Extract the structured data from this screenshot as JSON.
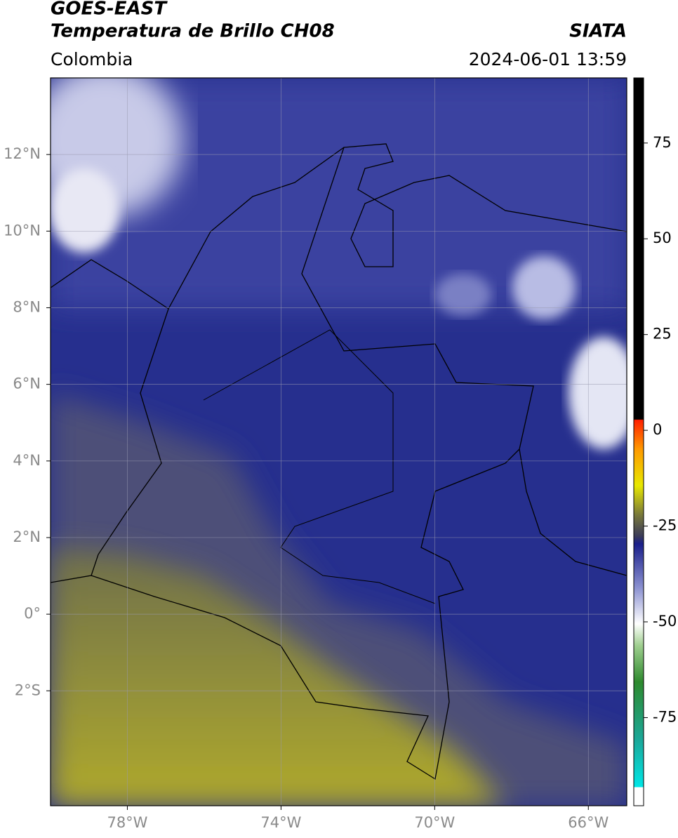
{
  "header": {
    "title": "GOES-EAST",
    "subtitle": "Temperatura de Brillo CH08",
    "agency": "SIATA",
    "region": "Colombia",
    "timestamp": "2024-06-01 13:59"
  },
  "map": {
    "xlim": [
      -80,
      -65
    ],
    "ylim": [
      -5,
      14
    ],
    "xticks": [
      {
        "value": -78,
        "label": "78°W"
      },
      {
        "value": -74,
        "label": "74°W"
      },
      {
        "value": -70,
        "label": "70°W"
      },
      {
        "value": -66,
        "label": "66°W"
      }
    ],
    "yticks": [
      {
        "value": -2,
        "label": "2°S"
      },
      {
        "value": 0,
        "label": "0°"
      },
      {
        "value": 2,
        "label": "2°N"
      },
      {
        "value": 4,
        "label": "4°N"
      },
      {
        "value": 6,
        "label": "6°N"
      },
      {
        "value": 8,
        "label": "8°N"
      },
      {
        "value": 10,
        "label": "10°N"
      },
      {
        "value": 12,
        "label": "12°N"
      }
    ],
    "grid": true
  },
  "colorbar": {
    "lim": [
      -98,
      92
    ],
    "ticks": [
      -75,
      -50,
      -25,
      0,
      25,
      50,
      75
    ]
  }
}
